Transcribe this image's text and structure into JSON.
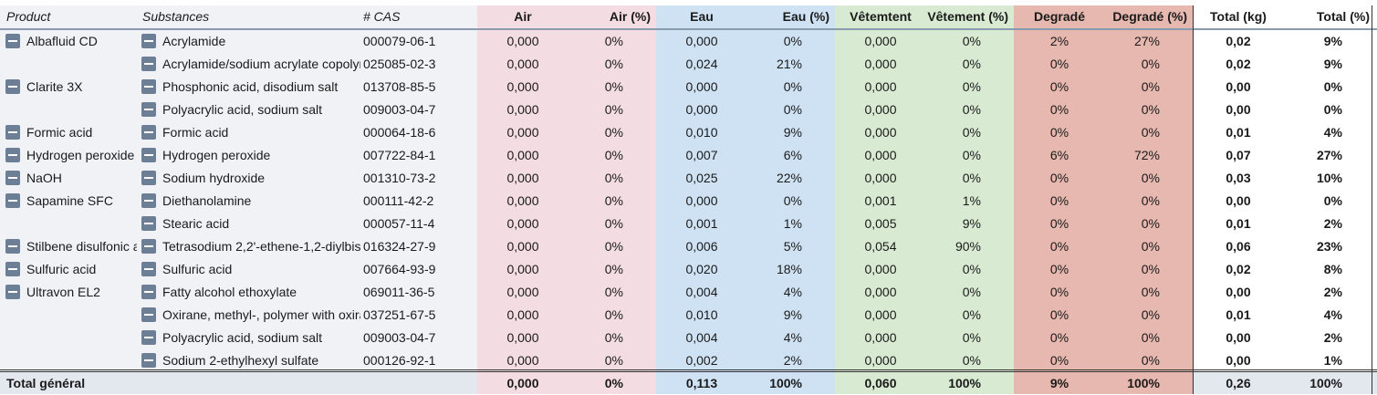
{
  "headers": {
    "product": "Product",
    "substances": "Substances",
    "cas": "# CAS",
    "air": "Air",
    "air_pct": "Air (%)",
    "eau": "Eau",
    "eau_pct": "Eau (%)",
    "vet": "Vêtemtent",
    "vet_pct": "Vêtement (%)",
    "deg": "Degradé",
    "deg_pct": "Degradé (%)",
    "tot": "Total (kg)",
    "tot_pct": "Total (%)"
  },
  "colors": {
    "band_left": "#f0f2f6",
    "air": "#f3dde2",
    "eau": "#cfe2f3",
    "vet": "#d9ead3",
    "deg": "#e6b8af",
    "footer": "#e3e8ef"
  },
  "rows": [
    {
      "product": "Albafluid CD",
      "substance": "Acrylamide",
      "cas": "000079-06-1",
      "air": "0,000",
      "air_pct": "0%",
      "eau": "0,000",
      "eau_pct": "0%",
      "vet": "0,000",
      "vet_pct": "0%",
      "deg": "2%",
      "deg_pct": "27%",
      "tot": "0,02",
      "tot_pct": "9%"
    },
    {
      "product": "",
      "substance": "Acrylamide/sodium acrylate copolymer",
      "cas": "025085-02-3",
      "air": "0,000",
      "air_pct": "0%",
      "eau": "0,024",
      "eau_pct": "21%",
      "vet": "0,000",
      "vet_pct": "0%",
      "deg": "0%",
      "deg_pct": "0%",
      "tot": "0,02",
      "tot_pct": "9%"
    },
    {
      "product": "Clarite 3X",
      "substance": "Phosphonic acid, disodium salt",
      "cas": "013708-85-5",
      "air": "0,000",
      "air_pct": "0%",
      "eau": "0,000",
      "eau_pct": "0%",
      "vet": "0,000",
      "vet_pct": "0%",
      "deg": "0%",
      "deg_pct": "0%",
      "tot": "0,00",
      "tot_pct": "0%"
    },
    {
      "product": "",
      "substance": "Polyacrylic acid, sodium salt",
      "cas": "009003-04-7",
      "air": "0,000",
      "air_pct": "0%",
      "eau": "0,000",
      "eau_pct": "0%",
      "vet": "0,000",
      "vet_pct": "0%",
      "deg": "0%",
      "deg_pct": "0%",
      "tot": "0,00",
      "tot_pct": "0%"
    },
    {
      "product": "Formic acid",
      "substance": "Formic acid",
      "cas": "000064-18-6",
      "air": "0,000",
      "air_pct": "0%",
      "eau": "0,010",
      "eau_pct": "9%",
      "vet": "0,000",
      "vet_pct": "0%",
      "deg": "0%",
      "deg_pct": "0%",
      "tot": "0,01",
      "tot_pct": "4%"
    },
    {
      "product": "Hydrogen peroxide",
      "substance": "Hydrogen peroxide",
      "cas": "007722-84-1",
      "air": "0,000",
      "air_pct": "0%",
      "eau": "0,007",
      "eau_pct": "6%",
      "vet": "0,000",
      "vet_pct": "0%",
      "deg": "6%",
      "deg_pct": "72%",
      "tot": "0,07",
      "tot_pct": "27%"
    },
    {
      "product": "NaOH",
      "substance": "Sodium hydroxide",
      "cas": "001310-73-2",
      "air": "0,000",
      "air_pct": "0%",
      "eau": "0,025",
      "eau_pct": "22%",
      "vet": "0,000",
      "vet_pct": "0%",
      "deg": "0%",
      "deg_pct": "0%",
      "tot": "0,03",
      "tot_pct": "10%"
    },
    {
      "product": "Sapamine SFC",
      "substance": "Diethanolamine",
      "cas": "000111-42-2",
      "air": "0,000",
      "air_pct": "0%",
      "eau": "0,000",
      "eau_pct": "0%",
      "vet": "0,001",
      "vet_pct": "1%",
      "deg": "0%",
      "deg_pct": "0%",
      "tot": "0,00",
      "tot_pct": "0%"
    },
    {
      "product": "",
      "substance": "Stearic acid",
      "cas": "000057-11-4",
      "air": "0,000",
      "air_pct": "0%",
      "eau": "0,001",
      "eau_pct": "1%",
      "vet": "0,005",
      "vet_pct": "9%",
      "deg": "0%",
      "deg_pct": "0%",
      "tot": "0,01",
      "tot_pct": "2%"
    },
    {
      "product": "Stilbene disulfonic acid",
      "substance": "Tetrasodium 2,2'-ethene-1,2-diylbis",
      "cas": "016324-27-9",
      "air": "0,000",
      "air_pct": "0%",
      "eau": "0,006",
      "eau_pct": "5%",
      "vet": "0,054",
      "vet_pct": "90%",
      "deg": "0%",
      "deg_pct": "0%",
      "tot": "0,06",
      "tot_pct": "23%"
    },
    {
      "product": "Sulfuric acid",
      "substance": "Sulfuric acid",
      "cas": "007664-93-9",
      "air": "0,000",
      "air_pct": "0%",
      "eau": "0,020",
      "eau_pct": "18%",
      "vet": "0,000",
      "vet_pct": "0%",
      "deg": "0%",
      "deg_pct": "0%",
      "tot": "0,02",
      "tot_pct": "8%"
    },
    {
      "product": "Ultravon EL2",
      "substance": "Fatty alcohol ethoxylate",
      "cas": "069011-36-5",
      "air": "0,000",
      "air_pct": "0%",
      "eau": "0,004",
      "eau_pct": "4%",
      "vet": "0,000",
      "vet_pct": "0%",
      "deg": "0%",
      "deg_pct": "0%",
      "tot": "0,00",
      "tot_pct": "2%"
    },
    {
      "product": "",
      "substance": "Oxirane, methyl-, polymer with oxirane",
      "cas": "037251-67-5",
      "air": "0,000",
      "air_pct": "0%",
      "eau": "0,010",
      "eau_pct": "9%",
      "vet": "0,000",
      "vet_pct": "0%",
      "deg": "0%",
      "deg_pct": "0%",
      "tot": "0,01",
      "tot_pct": "4%"
    },
    {
      "product": "",
      "substance": "Polyacrylic acid, sodium salt",
      "cas": "009003-04-7",
      "air": "0,000",
      "air_pct": "0%",
      "eau": "0,004",
      "eau_pct": "4%",
      "vet": "0,000",
      "vet_pct": "0%",
      "deg": "0%",
      "deg_pct": "0%",
      "tot": "0,00",
      "tot_pct": "2%"
    },
    {
      "product": "",
      "substance": "Sodium 2-ethylhexyl sulfate",
      "cas": "000126-92-1",
      "air": "0,000",
      "air_pct": "0%",
      "eau": "0,002",
      "eau_pct": "2%",
      "vet": "0,000",
      "vet_pct": "0%",
      "deg": "0%",
      "deg_pct": "0%",
      "tot": "0,00",
      "tot_pct": "1%"
    }
  ],
  "footer": {
    "label": "Total général",
    "air": "0,000",
    "air_pct": "0%",
    "eau": "0,113",
    "eau_pct": "100%",
    "vet": "0,060",
    "vet_pct": "100%",
    "deg": "9%",
    "deg_pct": "100%",
    "tot": "0,26",
    "tot_pct": "100%"
  }
}
